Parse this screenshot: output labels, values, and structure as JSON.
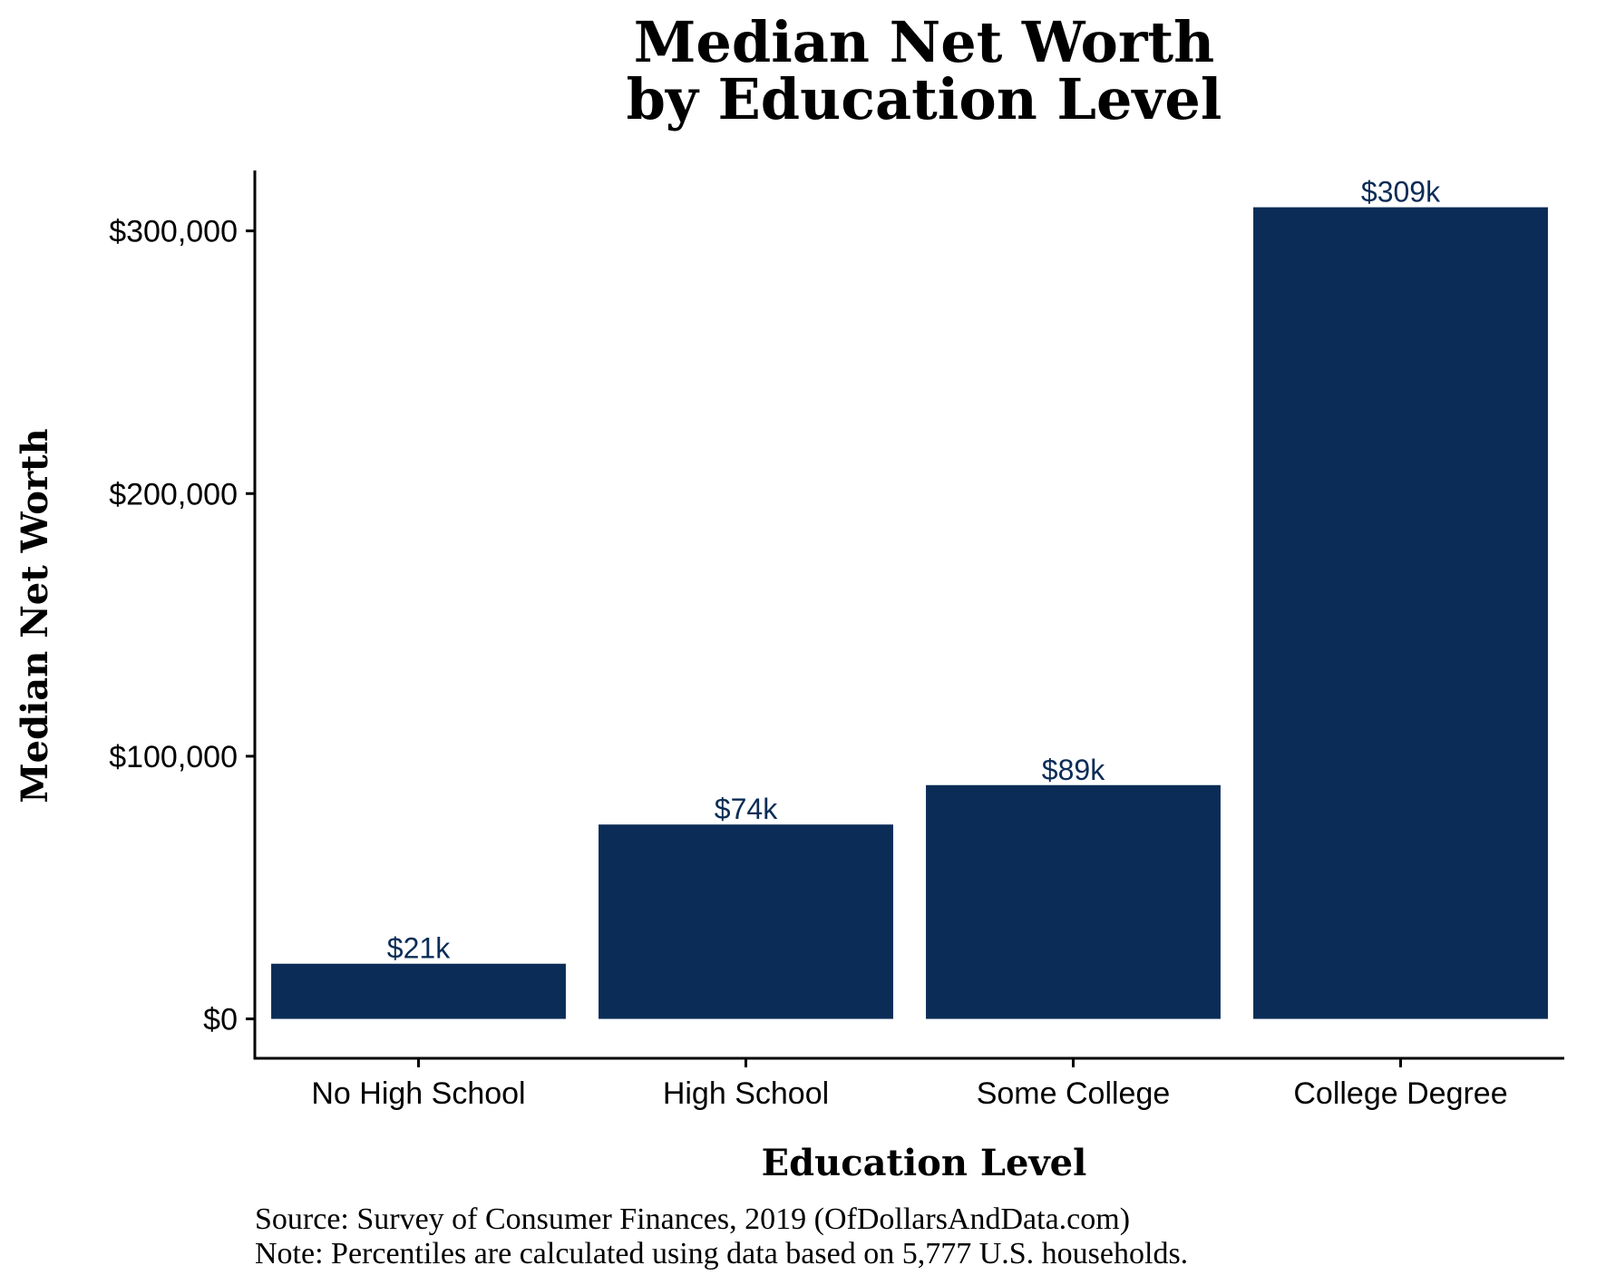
{
  "chart_data": {
    "type": "bar",
    "title": [
      "Median Net Worth",
      "by Education Level"
    ],
    "xlabel": "Education Level",
    "ylabel": "Median Net Worth",
    "categories": [
      "No High School",
      "High School",
      "Some College",
      "College Degree"
    ],
    "values": [
      21000,
      74000,
      89000,
      309000
    ],
    "data_labels": [
      "$21k",
      "$74k",
      "$89k",
      "$309k"
    ],
    "yticks": [
      0,
      100000,
      200000,
      300000
    ],
    "ytick_labels": [
      "$0",
      "$100,000",
      "$200,000",
      "$300,000"
    ],
    "ylim": [
      -15000,
      323000
    ],
    "grid": false,
    "legend": "none",
    "bar_color": "#0b2c56",
    "label_color": "#0b2c56"
  },
  "caption": {
    "source": "Source:  Survey of Consumer Finances, 2019 (OfDollarsAndData.com)",
    "note": "Note: Percentiles are calculated using data based on 5,777 U.S. households."
  }
}
